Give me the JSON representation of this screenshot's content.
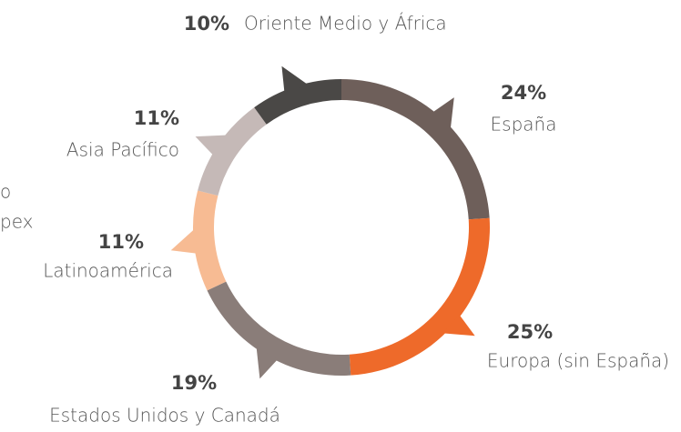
{
  "chart_data": {
    "type": "donut",
    "categories": [
      "España",
      "Europa (sin España)",
      "Estados Unidos  y Canadá",
      "Latinoamérica",
      "Asia Pacífico",
      "Oriente Medio y África"
    ],
    "values": [
      24,
      25,
      19,
      11,
      11,
      10
    ],
    "value_labels": [
      "24%",
      "25%",
      "19%",
      "11%",
      "11%",
      "10%"
    ],
    "colors": [
      "#6e5f5a",
      "#ee6a2a",
      "#8a7d79",
      "#f7bb93",
      "#c5b9b7",
      "#4a4846"
    ],
    "cropped_text": [
      "o",
      "pex"
    ]
  }
}
